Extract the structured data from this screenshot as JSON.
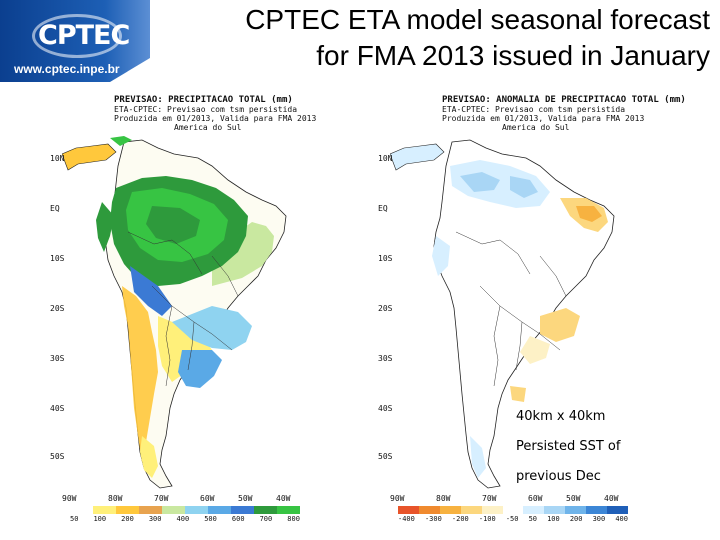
{
  "banner": {
    "logo_text": "CPTEC",
    "url": "www.cptec.inpe.br",
    "brand_color": "#0b3f8f"
  },
  "title": {
    "line1": "CPTEC ETA model seasonal forecast",
    "line2": "for FMA 2013 issued in January"
  },
  "panels": [
    {
      "header": [
        "PREVISAO: PRECIPITACAO TOTAL (mm)",
        "ETA-CPTEC: Previsao com tsm persistida",
        "Produzida em 01/2013, Valida para FMA 2013",
        "America do Sul"
      ],
      "colorbar_labels": [
        "50",
        "100",
        "200",
        "300",
        "400",
        "500",
        "600",
        "700",
        "800"
      ],
      "colorbar_colors": [
        "#ffffff",
        "#fff07a",
        "#ffc83c",
        "#e8a34f",
        "#c9e8a0",
        "#8fd3f0",
        "#5aa9e6",
        "#3b7ad4",
        "#2e9a3c",
        "#37c443"
      ]
    },
    {
      "header": [
        "PREVISAO: ANOMALIA DE PRECIPITACAO TOTAL (mm)",
        "ETA-CPTEC: Previsao com tsm persistida",
        "Produzida em 01/2013, Valida para FMA 2013",
        "America do Sul"
      ],
      "colorbar_labels": [
        "-400",
        "-300",
        "-200",
        "-100",
        "-50",
        "50",
        "100",
        "200",
        "300",
        "400"
      ],
      "colorbar_colors": [
        "#e8542a",
        "#f08a2e",
        "#f7b240",
        "#fcd77e",
        "#fdf1c6",
        "#ffffff",
        "#d7efff",
        "#a9d6f5",
        "#6fb4ea",
        "#3c86d6",
        "#1f5fb8"
      ]
    }
  ],
  "axes": {
    "lat_labels": [
      "10N",
      "EQ",
      "10S",
      "20S",
      "30S",
      "40S",
      "50S"
    ],
    "lon_labels": [
      "90W",
      "80W",
      "70W",
      "60W",
      "50W",
      "40W"
    ]
  },
  "notes": {
    "line1": "40km x 40km",
    "line2": "Persisted SST of",
    "line3": "previous Dec"
  }
}
